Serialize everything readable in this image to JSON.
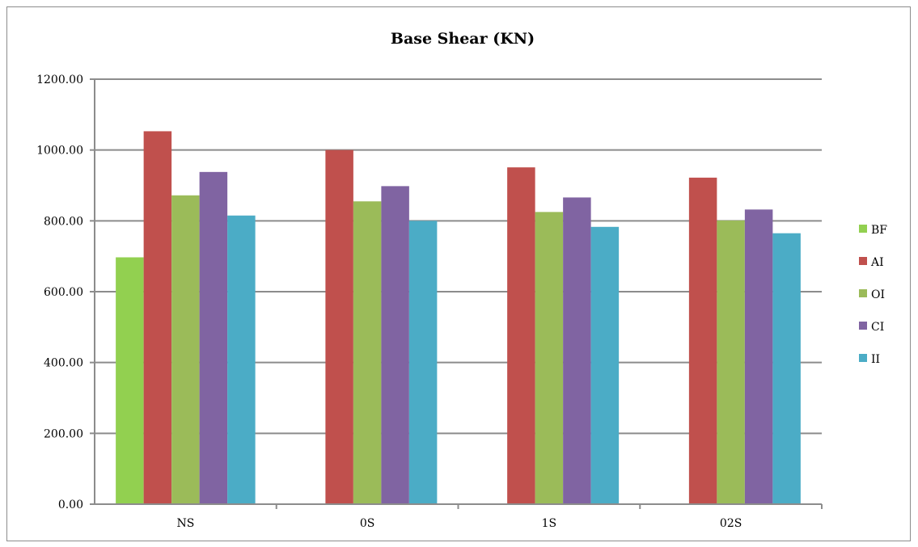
{
  "chart_data": {
    "type": "bar",
    "title": "Base Shear (KN)",
    "xlabel": "",
    "ylabel": "",
    "categories": [
      "NS",
      "0S",
      "1S",
      "02S"
    ],
    "ylim": [
      0,
      1200
    ],
    "yticks": [
      "0.00",
      "200.00",
      "400.00",
      "600.00",
      "800.00",
      "1000.00",
      "1200.00"
    ],
    "grid": true,
    "legend_position": "right",
    "series": [
      {
        "name": "BF",
        "color": "#92d050",
        "values": [
          697,
          null,
          null,
          null
        ]
      },
      {
        "name": "AI",
        "color": "#c0504d",
        "values": [
          1053,
          1000,
          951,
          922
        ]
      },
      {
        "name": "OI",
        "color": "#9bbb59",
        "values": [
          872,
          855,
          825,
          801
        ]
      },
      {
        "name": "CI",
        "color": "#8064a2",
        "values": [
          938,
          898,
          866,
          832
        ]
      },
      {
        "name": "II",
        "color": "#4bacc6",
        "values": [
          815,
          800,
          783,
          765
        ]
      }
    ]
  }
}
